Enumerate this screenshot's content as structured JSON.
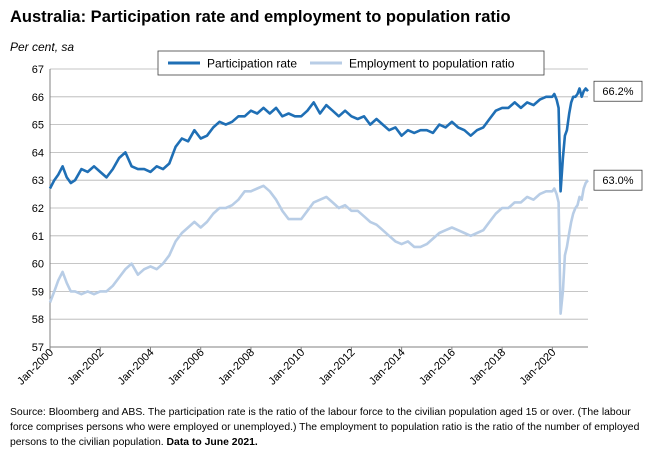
{
  "title": "Australia: Participation rate and employment to population ratio",
  "unit_label": "Per cent, sa",
  "source_note": "Source: Bloomberg and ABS.  The participation rate is the ratio of the labour force to the civilian population aged 15 or over.  (The labour force comprises persons who were employed or unemployed.)  The employment to population ratio is the ratio of the number of employed persons to the civilian population.",
  "source_emphasis": "Data to June 2021.",
  "colors": {
    "participation": "#1f6fb5",
    "employment": "#b8cde6",
    "grid": "#b3b3b3",
    "axis": "#808080"
  },
  "chart_data": {
    "type": "line",
    "ylim": [
      57,
      67
    ],
    "yticks": [
      57,
      58,
      59,
      60,
      61,
      62,
      63,
      64,
      65,
      66,
      67
    ],
    "xlim": [
      2000.0,
      2021.42
    ],
    "xticks": [
      {
        "label": "Jan-2000",
        "x": 2000
      },
      {
        "label": "Jan-2002",
        "x": 2002
      },
      {
        "label": "Jan-2004",
        "x": 2004
      },
      {
        "label": "Jan-2006",
        "x": 2006
      },
      {
        "label": "Jan-2008",
        "x": 2008
      },
      {
        "label": "Jan-2010",
        "x": 2010
      },
      {
        "label": "Jan-2012",
        "x": 2012
      },
      {
        "label": "Jan-2014",
        "x": 2014
      },
      {
        "label": "Jan-2016",
        "x": 2016
      },
      {
        "label": "Jan-2018",
        "x": 2018
      },
      {
        "label": "Jan-2020",
        "x": 2020
      }
    ],
    "grid": true,
    "legend_position": "top",
    "series": [
      {
        "name": "Participation rate",
        "end_label": "66.2%",
        "x": [
          2000.0,
          2000.17,
          2000.33,
          2000.5,
          2000.67,
          2000.83,
          2001.0,
          2001.25,
          2001.5,
          2001.75,
          2002.0,
          2002.25,
          2002.5,
          2002.75,
          2003.0,
          2003.25,
          2003.5,
          2003.75,
          2004.0,
          2004.25,
          2004.5,
          2004.75,
          2005.0,
          2005.25,
          2005.5,
          2005.75,
          2006.0,
          2006.25,
          2006.5,
          2006.75,
          2007.0,
          2007.25,
          2007.5,
          2007.75,
          2008.0,
          2008.25,
          2008.5,
          2008.75,
          2009.0,
          2009.25,
          2009.5,
          2009.75,
          2010.0,
          2010.25,
          2010.5,
          2010.75,
          2011.0,
          2011.25,
          2011.5,
          2011.75,
          2012.0,
          2012.25,
          2012.5,
          2012.75,
          2013.0,
          2013.25,
          2013.5,
          2013.75,
          2014.0,
          2014.25,
          2014.5,
          2014.75,
          2015.0,
          2015.25,
          2015.5,
          2015.75,
          2016.0,
          2016.25,
          2016.5,
          2016.75,
          2017.0,
          2017.25,
          2017.5,
          2017.75,
          2018.0,
          2018.25,
          2018.5,
          2018.75,
          2019.0,
          2019.25,
          2019.5,
          2019.75,
          2020.0,
          2020.08,
          2020.17,
          2020.25,
          2020.33,
          2020.42,
          2020.5,
          2020.58,
          2020.67,
          2020.75,
          2020.83,
          2020.92,
          2021.0,
          2021.08,
          2021.17,
          2021.25,
          2021.33,
          2021.42
        ],
        "y": [
          62.7,
          63.0,
          63.2,
          63.5,
          63.1,
          62.9,
          63.0,
          63.4,
          63.3,
          63.5,
          63.3,
          63.1,
          63.4,
          63.8,
          64.0,
          63.5,
          63.4,
          63.4,
          63.3,
          63.5,
          63.4,
          63.6,
          64.2,
          64.5,
          64.4,
          64.8,
          64.5,
          64.6,
          64.9,
          65.1,
          65.0,
          65.1,
          65.3,
          65.3,
          65.5,
          65.4,
          65.6,
          65.4,
          65.6,
          65.3,
          65.4,
          65.3,
          65.3,
          65.5,
          65.8,
          65.4,
          65.7,
          65.5,
          65.3,
          65.5,
          65.3,
          65.2,
          65.3,
          65.0,
          65.2,
          65.0,
          64.8,
          64.9,
          64.6,
          64.8,
          64.7,
          64.8,
          64.8,
          64.7,
          65.0,
          64.9,
          65.1,
          64.9,
          64.8,
          64.6,
          64.8,
          64.9,
          65.2,
          65.5,
          65.6,
          65.6,
          65.8,
          65.6,
          65.8,
          65.7,
          65.9,
          66.0,
          66.0,
          66.1,
          65.9,
          65.6,
          62.6,
          63.8,
          64.6,
          64.8,
          65.4,
          65.8,
          66.0,
          66.0,
          66.1,
          66.3,
          66.0,
          66.2,
          66.3,
          66.2
        ]
      },
      {
        "name": "Employment to population ratio",
        "end_label": "63.0%",
        "x": [
          2000.0,
          2000.17,
          2000.33,
          2000.5,
          2000.67,
          2000.83,
          2001.0,
          2001.25,
          2001.5,
          2001.75,
          2002.0,
          2002.25,
          2002.5,
          2002.75,
          2003.0,
          2003.25,
          2003.5,
          2003.75,
          2004.0,
          2004.25,
          2004.5,
          2004.75,
          2005.0,
          2005.25,
          2005.5,
          2005.75,
          2006.0,
          2006.25,
          2006.5,
          2006.75,
          2007.0,
          2007.25,
          2007.5,
          2007.75,
          2008.0,
          2008.25,
          2008.5,
          2008.75,
          2009.0,
          2009.25,
          2009.5,
          2009.75,
          2010.0,
          2010.25,
          2010.5,
          2010.75,
          2011.0,
          2011.25,
          2011.5,
          2011.75,
          2012.0,
          2012.25,
          2012.5,
          2012.75,
          2013.0,
          2013.25,
          2013.5,
          2013.75,
          2014.0,
          2014.25,
          2014.5,
          2014.75,
          2015.0,
          2015.25,
          2015.5,
          2015.75,
          2016.0,
          2016.25,
          2016.5,
          2016.75,
          2017.0,
          2017.25,
          2017.5,
          2017.75,
          2018.0,
          2018.25,
          2018.5,
          2018.75,
          2019.0,
          2019.25,
          2019.5,
          2019.75,
          2020.0,
          2020.08,
          2020.17,
          2020.25,
          2020.33,
          2020.42,
          2020.5,
          2020.58,
          2020.67,
          2020.75,
          2020.83,
          2020.92,
          2021.0,
          2021.08,
          2021.17,
          2021.25,
          2021.33,
          2021.42
        ],
        "y": [
          58.6,
          59.0,
          59.4,
          59.7,
          59.3,
          59.0,
          59.0,
          58.9,
          59.0,
          58.9,
          59.0,
          59.0,
          59.2,
          59.5,
          59.8,
          60.0,
          59.6,
          59.8,
          59.9,
          59.8,
          60.0,
          60.3,
          60.8,
          61.1,
          61.3,
          61.5,
          61.3,
          61.5,
          61.8,
          62.0,
          62.0,
          62.1,
          62.3,
          62.6,
          62.6,
          62.7,
          62.8,
          62.6,
          62.3,
          61.9,
          61.6,
          61.6,
          61.6,
          61.9,
          62.2,
          62.3,
          62.4,
          62.2,
          62.0,
          62.1,
          61.9,
          61.9,
          61.7,
          61.5,
          61.4,
          61.2,
          61.0,
          60.8,
          60.7,
          60.8,
          60.6,
          60.6,
          60.7,
          60.9,
          61.1,
          61.2,
          61.3,
          61.2,
          61.1,
          61.0,
          61.1,
          61.2,
          61.5,
          61.8,
          62.0,
          62.0,
          62.2,
          62.2,
          62.4,
          62.3,
          62.5,
          62.6,
          62.6,
          62.7,
          62.5,
          62.2,
          58.2,
          59.0,
          60.3,
          60.6,
          61.1,
          61.5,
          61.8,
          62.0,
          62.1,
          62.4,
          62.3,
          62.7,
          62.9,
          63.0
        ]
      }
    ]
  }
}
